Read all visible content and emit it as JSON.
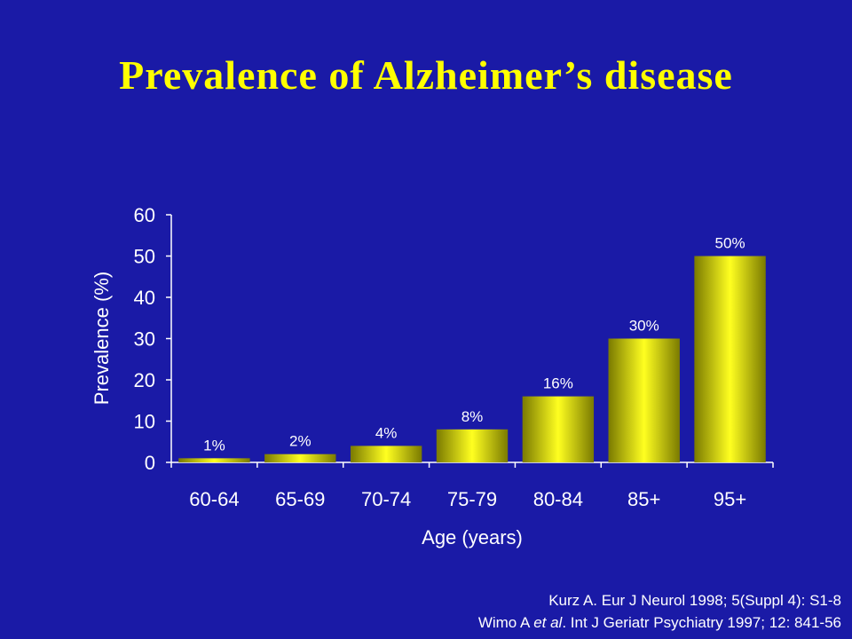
{
  "slide": {
    "title": "Prevalence of Alzheimer’s disease"
  },
  "chart_data": {
    "type": "bar",
    "title": "",
    "xlabel": "Age (years)",
    "ylabel": "Prevalence (%)",
    "categories": [
      "60-64",
      "65-69",
      "70-74",
      "75-79",
      "80-84",
      "85+",
      "95+"
    ],
    "values": [
      1,
      2,
      4,
      8,
      16,
      30,
      50
    ],
    "data_labels": [
      "1%",
      "2%",
      "4%",
      "8%",
      "16%",
      "30%",
      "50%"
    ],
    "ylim": [
      0,
      60
    ],
    "yticks": [
      0,
      10,
      20,
      30,
      40,
      50,
      60
    ],
    "grid": false,
    "legend": "none",
    "colors": {
      "background": "#1a1aa6",
      "bar": "#ffff00",
      "bar_dark": "#8a8a00",
      "text": "#ffffff",
      "title": "#ffff00"
    }
  },
  "references": [
    {
      "pre": "Kurz A. Eur J Neurol 1998; 5(Suppl 4): S1-8",
      "em": "",
      "post": ""
    },
    {
      "pre": "Wimo A ",
      "em": "et al",
      "post": ". Int J Geriatr Psychiatry 1997; 12: 841-56"
    }
  ]
}
